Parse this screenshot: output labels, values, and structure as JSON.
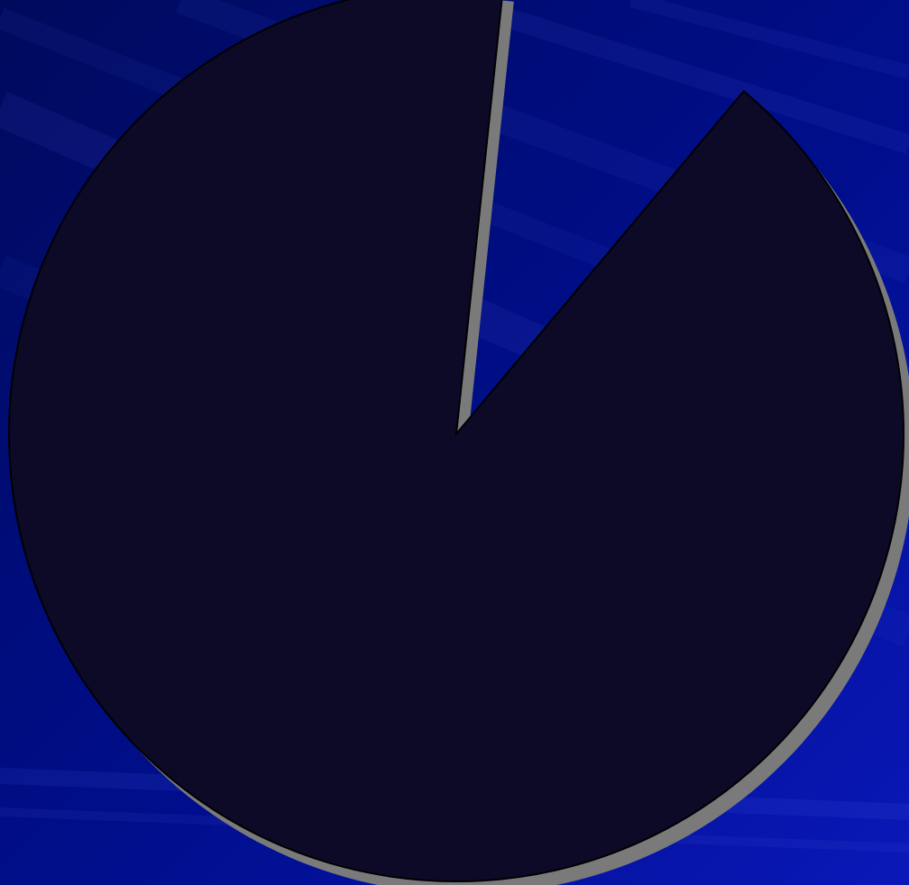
{
  "slide": {
    "background_color": "#000e8c",
    "background_dark": "#000a5c",
    "background_light": "#0a18b8",
    "streak_color": "#4a64e6"
  },
  "pie": {
    "slice_color": "#0d0a28",
    "outline_color": "#000000",
    "shadow_color": "#7a7a7a",
    "gap_direction": "top-right",
    "filled_fraction": 0.875,
    "gap_fraction": 0.125
  }
}
